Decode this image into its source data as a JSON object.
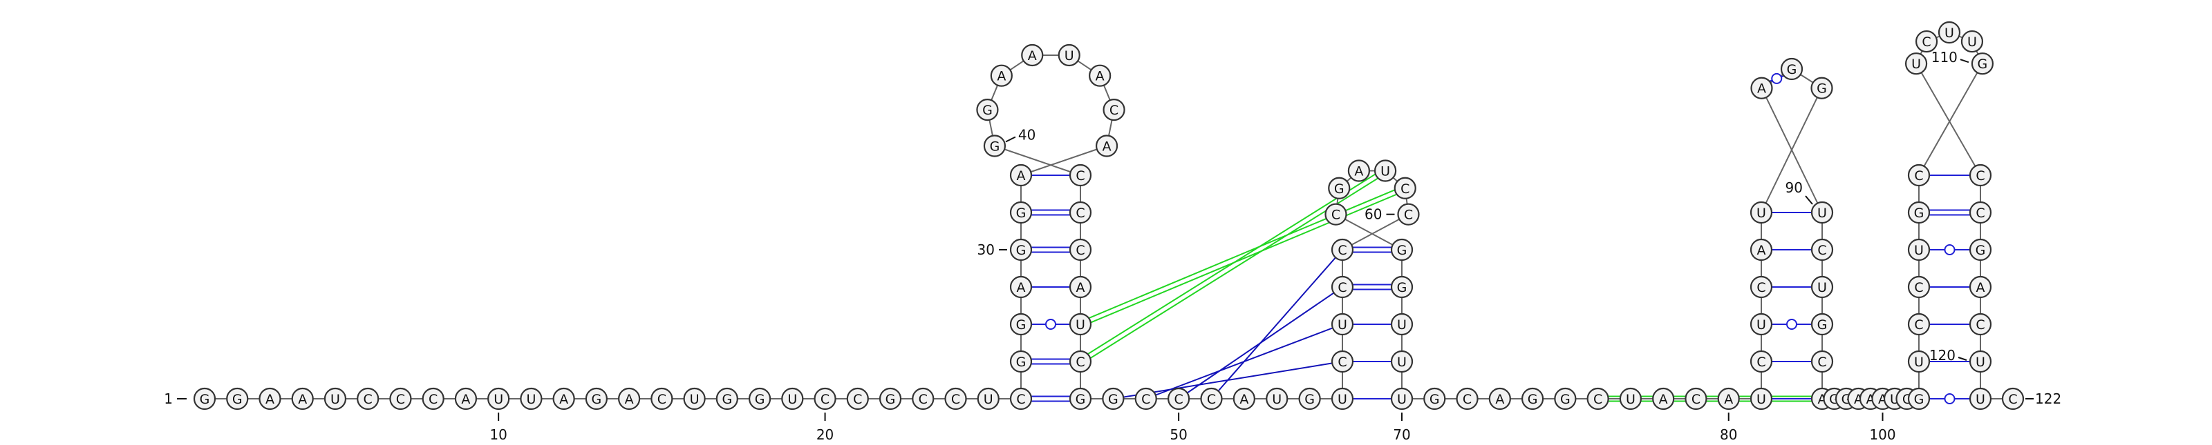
{
  "sequence": "GGAAUCCCAUUAGACUGGUCCGCCUCGGAGGAACAUAAGGCCCAUCGGCCCAUGUCUCCCCUAGCGGUUUGCAGGCUACAUCUCAUGGAUCUGCAGGAAAUCGUCCUGCGUUCUCCGACUUC",
  "stems": [
    {
      "type": "canonical",
      "i": 26,
      "j": 47,
      "n": 7
    },
    {
      "type": "canonical",
      "i": 55,
      "j": 70,
      "n": 5
    },
    {
      "type": "canonical",
      "i": 81,
      "j": 95,
      "n": 6
    },
    {
      "type": "canonical",
      "i": 103,
      "j": 121,
      "n": 7
    }
  ],
  "gu_pairs": [
    [
      88,
      89
    ]
  ],
  "pseudoknot_blue": [
    [
      48,
      56
    ],
    [
      49,
      57
    ],
    [
      50,
      58
    ],
    [
      51,
      59
    ]
  ],
  "pseudoknot_green": [
    [
      45,
      61
    ],
    [
      46,
      62
    ],
    [
      76,
      96
    ],
    [
      77,
      98
    ],
    [
      78,
      99
    ],
    [
      79,
      100
    ]
  ],
  "position_labels": [
    {
      "pos": 1,
      "text": "1"
    },
    {
      "pos": 10,
      "text": "10"
    },
    {
      "pos": 20,
      "text": "20"
    },
    {
      "pos": 30,
      "text": "30"
    },
    {
      "pos": 40,
      "text": "40"
    },
    {
      "pos": 50,
      "text": "50"
    },
    {
      "pos": 60,
      "text": "60"
    },
    {
      "pos": 70,
      "text": "70"
    },
    {
      "pos": 80,
      "text": "80"
    },
    {
      "pos": 90,
      "text": "90"
    },
    {
      "pos": 100,
      "text": "100"
    },
    {
      "pos": 110,
      "text": "110"
    },
    {
      "pos": 120,
      "text": "120"
    },
    {
      "pos": 122,
      "text": "122"
    }
  ],
  "colors": {
    "backbone": "#666666",
    "canonical": "#1f1fd6",
    "pseudoknot_blue": "#1212b8",
    "pseudoknot_green": "#22d622",
    "node_fill": "#f2f2f2",
    "node_stroke": "#333333"
  }
}
